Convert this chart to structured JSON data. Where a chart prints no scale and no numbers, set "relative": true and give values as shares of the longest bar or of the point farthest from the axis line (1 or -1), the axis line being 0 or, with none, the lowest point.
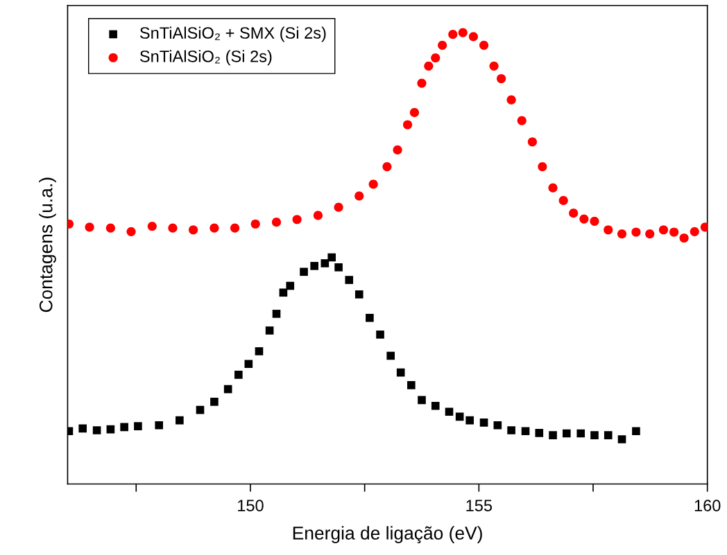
{
  "chart_data": {
    "type": "scatter",
    "relative": true,
    "xlabel": "Energia de ligação (eV)",
    "ylabel": "Contagens (u.a.)",
    "xlim": [
      146,
      160
    ],
    "xticks": [
      {
        "value": 147.5,
        "label": null
      },
      150,
      {
        "value": 152.5,
        "label": null
      },
      155,
      {
        "value": 157.5,
        "label": null
      },
      160
    ],
    "legend": "top left",
    "grid": false,
    "series": [
      {
        "name": "SnTiAlSiO₂ + SMX (Si 2s)",
        "color": "#000000",
        "marker": "square",
        "x": [
          146.03,
          146.33,
          146.64,
          146.94,
          147.24,
          147.54,
          148.0,
          148.45,
          148.9,
          149.21,
          149.51,
          149.74,
          149.96,
          150.19,
          150.42,
          150.57,
          150.72,
          150.87,
          151.17,
          151.4,
          151.63,
          151.78,
          151.93,
          152.16,
          152.38,
          152.61,
          152.84,
          153.07,
          153.29,
          153.52,
          153.75,
          154.05,
          154.35,
          154.58,
          154.8,
          155.11,
          155.41,
          155.71,
          156.02,
          156.32,
          156.62,
          156.92,
          157.23,
          157.53,
          157.83,
          158.13,
          158.44
        ],
        "values": [
          0.117,
          0.123,
          0.119,
          0.121,
          0.126,
          0.128,
          0.13,
          0.141,
          0.164,
          0.182,
          0.21,
          0.242,
          0.266,
          0.294,
          0.34,
          0.377,
          0.424,
          0.439,
          0.47,
          0.483,
          0.489,
          0.502,
          0.48,
          0.452,
          0.42,
          0.368,
          0.331,
          0.284,
          0.247,
          0.219,
          0.186,
          0.173,
          0.16,
          0.149,
          0.141,
          0.136,
          0.13,
          0.119,
          0.117,
          0.113,
          0.108,
          0.112,
          0.112,
          0.108,
          0.108,
          0.099,
          0.117
        ]
      },
      {
        "name": "SnTiAlSiO₂ (Si 2s)",
        "color": "#ff0000",
        "marker": "circle",
        "x": [
          146.03,
          146.48,
          146.94,
          147.39,
          147.85,
          148.3,
          148.75,
          149.21,
          149.66,
          150.11,
          150.57,
          151.02,
          151.48,
          151.93,
          152.38,
          152.69,
          152.99,
          153.22,
          153.44,
          153.59,
          153.75,
          153.9,
          154.05,
          154.2,
          154.43,
          154.65,
          154.88,
          155.11,
          155.33,
          155.49,
          155.71,
          155.94,
          156.17,
          156.39,
          156.62,
          156.85,
          157.07,
          157.3,
          157.53,
          157.83,
          158.13,
          158.44,
          158.74,
          159.04,
          159.27,
          159.49,
          159.72,
          159.95
        ],
        "values": [
          0.576,
          0.569,
          0.567,
          0.559,
          0.571,
          0.567,
          0.563,
          0.567,
          0.567,
          0.576,
          0.58,
          0.586,
          0.595,
          0.613,
          0.638,
          0.664,
          0.703,
          0.74,
          0.796,
          0.823,
          0.888,
          0.926,
          0.944,
          0.972,
          0.996,
          1.0,
          0.991,
          0.972,
          0.926,
          0.898,
          0.851,
          0.805,
          0.758,
          0.703,
          0.656,
          0.628,
          0.6,
          0.587,
          0.582,
          0.563,
          0.554,
          0.558,
          0.554,
          0.563,
          0.558,
          0.545,
          0.559,
          0.569
        ]
      }
    ]
  }
}
